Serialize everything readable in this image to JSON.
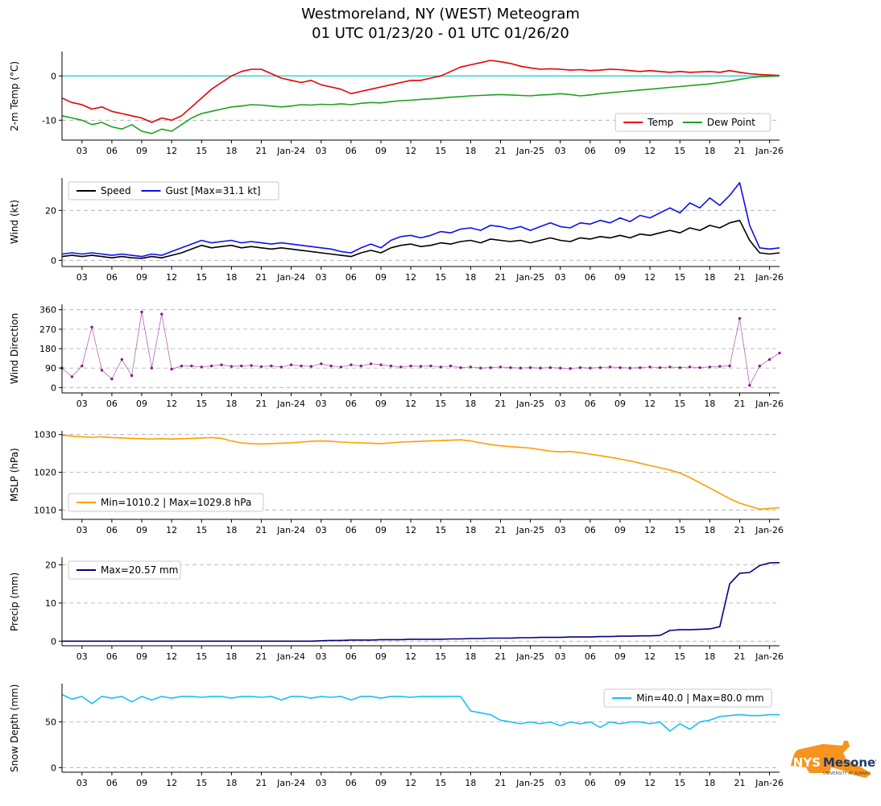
{
  "title": "Westmoreland, NY (WEST) Meteogram",
  "subtitle": "01 UTC 01/23/20 - 01 UTC 01/26/20",
  "logo": {
    "org": "NYS",
    "name": "Mesonet",
    "subtext": "UNIVERSITY AT ALBANY",
    "shape_color": "#f7941d",
    "text_color": "#1b3a6b"
  },
  "x_axis": {
    "hours_span": 72,
    "ticks": [
      {
        "h": 2,
        "label": "03"
      },
      {
        "h": 5,
        "label": "06"
      },
      {
        "h": 8,
        "label": "09"
      },
      {
        "h": 11,
        "label": "12"
      },
      {
        "h": 14,
        "label": "15"
      },
      {
        "h": 17,
        "label": "18"
      },
      {
        "h": 20,
        "label": "21"
      },
      {
        "h": 23,
        "label": "Jan-24"
      },
      {
        "h": 26,
        "label": "03"
      },
      {
        "h": 29,
        "label": "06"
      },
      {
        "h": 32,
        "label": "09"
      },
      {
        "h": 35,
        "label": "12"
      },
      {
        "h": 38,
        "label": "15"
      },
      {
        "h": 41,
        "label": "18"
      },
      {
        "h": 44,
        "label": "21"
      },
      {
        "h": 47,
        "label": "Jan-25"
      },
      {
        "h": 50,
        "label": "03"
      },
      {
        "h": 53,
        "label": "06"
      },
      {
        "h": 56,
        "label": "09"
      },
      {
        "h": 59,
        "label": "12"
      },
      {
        "h": 62,
        "label": "15"
      },
      {
        "h": 65,
        "label": "18"
      },
      {
        "h": 68,
        "label": "21"
      },
      {
        "h": 71,
        "label": "Jan-26"
      }
    ]
  },
  "grid": {
    "on": true,
    "color": "#aaaaaa",
    "dash": "5 4"
  },
  "chart_data": [
    {
      "type": "line",
      "name": "temperature",
      "ylabel": "2-m Temp (°C)",
      "ylim": [
        -14.5,
        5.5
      ],
      "yticks": [
        0,
        -10
      ],
      "hline": {
        "y": 0,
        "color": "#2ad0d0"
      },
      "legend": {
        "pos": "se",
        "items": [
          {
            "label": "Temp",
            "color": "#e60000"
          },
          {
            "label": "Dew Point",
            "color": "#1fa01f"
          }
        ]
      },
      "series": [
        {
          "name": "temp",
          "color": "#e60000",
          "values": [
            -5.0,
            -6.0,
            -6.5,
            -7.5,
            -7.0,
            -8.0,
            -8.5,
            -9.0,
            -9.5,
            -10.5,
            -9.5,
            -10.0,
            -9.0,
            -7.0,
            -5.0,
            -3.0,
            -1.5,
            0.0,
            1.0,
            1.5,
            1.5,
            0.5,
            -0.5,
            -1.0,
            -1.5,
            -1.0,
            -2.0,
            -2.5,
            -3.0,
            -4.0,
            -3.5,
            -3.0,
            -2.5,
            -2.0,
            -1.5,
            -1.0,
            -1.0,
            -0.5,
            0.0,
            1.0,
            2.0,
            2.5,
            3.0,
            3.5,
            3.2,
            2.8,
            2.2,
            1.8,
            1.5,
            1.6,
            1.5,
            1.3,
            1.4,
            1.2,
            1.3,
            1.5,
            1.4,
            1.2,
            1.0,
            1.2,
            1.0,
            0.8,
            1.0,
            0.8,
            0.9,
            1.0,
            0.8,
            1.2,
            0.8,
            0.5,
            0.3,
            0.2,
            0.1
          ]
        },
        {
          "name": "dew-point",
          "color": "#1fa01f",
          "values": [
            -9.0,
            -9.5,
            -10.0,
            -11.0,
            -10.5,
            -11.5,
            -12.0,
            -11.0,
            -12.5,
            -13.0,
            -12.0,
            -12.5,
            -11.0,
            -9.5,
            -8.5,
            -8.0,
            -7.5,
            -7.0,
            -6.8,
            -6.5,
            -6.6,
            -6.8,
            -7.0,
            -6.8,
            -6.5,
            -6.6,
            -6.4,
            -6.5,
            -6.3,
            -6.5,
            -6.2,
            -6.0,
            -6.1,
            -5.8,
            -5.6,
            -5.5,
            -5.3,
            -5.2,
            -5.0,
            -4.8,
            -4.7,
            -4.5,
            -4.4,
            -4.3,
            -4.2,
            -4.3,
            -4.4,
            -4.5,
            -4.3,
            -4.2,
            -4.0,
            -4.2,
            -4.5,
            -4.3,
            -4.0,
            -3.8,
            -3.6,
            -3.4,
            -3.2,
            -3.0,
            -2.8,
            -2.6,
            -2.4,
            -2.2,
            -2.0,
            -1.8,
            -1.5,
            -1.2,
            -0.8,
            -0.4,
            -0.2,
            -0.1,
            0.0
          ]
        }
      ]
    },
    {
      "type": "line",
      "name": "wind",
      "ylabel": "Wind (kt)",
      "ylim": [
        -2.5,
        33
      ],
      "yticks": [
        0,
        20
      ],
      "legend": {
        "pos": "nw",
        "items": [
          {
            "label": "Speed",
            "color": "#000000"
          },
          {
            "label": "Gust [Max=31.1 kt]",
            "color": "#0f0fe8"
          }
        ]
      },
      "series": [
        {
          "name": "speed",
          "color": "#000000",
          "values": [
            1.5,
            2.0,
            1.5,
            2.0,
            1.5,
            1.0,
            1.5,
            1.0,
            0.8,
            1.5,
            1.0,
            2.0,
            3.0,
            4.5,
            6.0,
            5.0,
            5.5,
            6.0,
            5.0,
            5.5,
            5.0,
            4.5,
            5.0,
            4.5,
            4.0,
            3.5,
            3.0,
            2.5,
            2.0,
            1.5,
            3.0,
            4.0,
            3.0,
            5.0,
            6.0,
            6.5,
            5.5,
            6.0,
            7.0,
            6.5,
            7.5,
            8.0,
            7.0,
            8.5,
            8.0,
            7.5,
            8.0,
            7.0,
            8.0,
            9.0,
            8.0,
            7.5,
            9.0,
            8.5,
            9.5,
            9.0,
            10.0,
            9.0,
            10.5,
            10.0,
            11.0,
            12.0,
            11.0,
            13.0,
            12.0,
            14.0,
            13.0,
            15.0,
            16.0,
            8.0,
            3.0,
            2.5,
            3.0
          ]
        },
        {
          "name": "gust",
          "color": "#0f0fe8",
          "values": [
            2.5,
            3.0,
            2.5,
            3.0,
            2.5,
            2.0,
            2.5,
            2.0,
            1.5,
            2.5,
            2.0,
            3.5,
            5.0,
            6.5,
            8.0,
            7.0,
            7.5,
            8.0,
            7.0,
            7.5,
            7.0,
            6.5,
            7.0,
            6.5,
            6.0,
            5.5,
            5.0,
            4.5,
            3.5,
            3.0,
            5.0,
            6.5,
            5.0,
            8.0,
            9.5,
            10.0,
            9.0,
            10.0,
            11.5,
            11.0,
            12.5,
            13.0,
            12.0,
            14.0,
            13.5,
            12.5,
            13.5,
            12.0,
            13.5,
            15.0,
            13.5,
            13.0,
            15.0,
            14.5,
            16.0,
            15.0,
            17.0,
            15.5,
            18.0,
            17.0,
            19.0,
            21.0,
            19.0,
            23.0,
            21.0,
            25.0,
            22.0,
            26.0,
            31.1,
            14.0,
            5.0,
            4.5,
            5.0
          ]
        }
      ]
    },
    {
      "type": "scatter",
      "name": "wind-direction",
      "ylabel": "Wind Direction",
      "ylim": [
        -25,
        385
      ],
      "yticks": [
        0,
        90,
        180,
        270,
        360
      ],
      "style": "dots",
      "series": [
        {
          "name": "direction",
          "color": "#8b1a89",
          "values": [
            90,
            50,
            100,
            280,
            80,
            40,
            130,
            55,
            350,
            90,
            340,
            85,
            100,
            100,
            95,
            100,
            105,
            98,
            100,
            102,
            97,
            100,
            95,
            105,
            100,
            98,
            110,
            100,
            95,
            105,
            100,
            110,
            105,
            100,
            95,
            100,
            98,
            100,
            95,
            100,
            92,
            95,
            90,
            92,
            95,
            92,
            90,
            92,
            90,
            92,
            90,
            88,
            92,
            90,
            92,
            95,
            92,
            90,
            92,
            95,
            92,
            95,
            92,
            95,
            92,
            95,
            98,
            100,
            320,
            10,
            100,
            130,
            160
          ]
        }
      ]
    },
    {
      "type": "line",
      "name": "mslp",
      "ylabel": "MSLP (hPa)",
      "ylim": [
        1007.5,
        1031
      ],
      "yticks": [
        1010,
        1020,
        1030
      ],
      "legend": {
        "pos": "sw",
        "items": [
          {
            "label": "Min=1010.2 | Max=1029.8 hPa",
            "color": "#ff9d00"
          }
        ]
      },
      "series": [
        {
          "name": "mslp",
          "color": "#ff9d00",
          "values": [
            1029.8,
            1029.6,
            1029.4,
            1029.3,
            1029.4,
            1029.2,
            1029.1,
            1029.0,
            1028.9,
            1028.8,
            1028.9,
            1028.8,
            1028.9,
            1029.0,
            1029.1,
            1029.2,
            1029.0,
            1028.3,
            1027.8,
            1027.6,
            1027.5,
            1027.6,
            1027.7,
            1027.8,
            1028.0,
            1028.2,
            1028.3,
            1028.2,
            1028.0,
            1027.9,
            1027.8,
            1027.7,
            1027.6,
            1027.8,
            1028.0,
            1028.1,
            1028.2,
            1028.3,
            1028.4,
            1028.5,
            1028.6,
            1028.3,
            1027.8,
            1027.4,
            1027.0,
            1026.8,
            1026.6,
            1026.4,
            1026.0,
            1025.6,
            1025.4,
            1025.5,
            1025.2,
            1024.8,
            1024.4,
            1024.0,
            1023.5,
            1023.0,
            1022.4,
            1021.8,
            1021.2,
            1020.6,
            1019.8,
            1018.6,
            1017.2,
            1015.8,
            1014.4,
            1013.0,
            1011.8,
            1011.0,
            1010.2,
            1010.4,
            1010.6
          ]
        }
      ]
    },
    {
      "type": "line",
      "name": "precip",
      "ylabel": "Precip (mm)",
      "ylim": [
        -1.2,
        22
      ],
      "yticks": [
        0,
        10,
        20
      ],
      "legend": {
        "pos": "nw",
        "items": [
          {
            "label": "Max=20.57 mm",
            "color": "#000080"
          }
        ]
      },
      "series": [
        {
          "name": "precip",
          "color": "#000080",
          "values": [
            0,
            0,
            0,
            0,
            0,
            0,
            0,
            0,
            0,
            0,
            0,
            0,
            0,
            0,
            0,
            0,
            0,
            0,
            0,
            0,
            0,
            0,
            0,
            0,
            0,
            0,
            0.1,
            0.2,
            0.2,
            0.3,
            0.3,
            0.3,
            0.4,
            0.4,
            0.4,
            0.5,
            0.5,
            0.5,
            0.5,
            0.6,
            0.6,
            0.7,
            0.7,
            0.8,
            0.8,
            0.8,
            0.9,
            0.9,
            1.0,
            1.0,
            1.0,
            1.1,
            1.1,
            1.1,
            1.2,
            1.2,
            1.3,
            1.3,
            1.4,
            1.4,
            1.5,
            2.8,
            3.0,
            3.0,
            3.1,
            3.2,
            3.8,
            15.0,
            17.8,
            18.0,
            19.8,
            20.5,
            20.57
          ]
        }
      ]
    },
    {
      "type": "line",
      "name": "snow-depth",
      "ylabel": "Snow Depth (mm)",
      "ylim": [
        -5,
        92
      ],
      "yticks": [
        0,
        50
      ],
      "legend": {
        "pos": "ne",
        "items": [
          {
            "label": "Min=40.0 | Max=80.0 mm",
            "color": "#18c0f0"
          }
        ]
      },
      "series": [
        {
          "name": "snow-depth",
          "color": "#18c0f0",
          "values": [
            80,
            75,
            78,
            70,
            78,
            76,
            78,
            72,
            78,
            74,
            78,
            76,
            78,
            78,
            77,
            78,
            78,
            76,
            78,
            78,
            77,
            78,
            74,
            78,
            78,
            76,
            78,
            77,
            78,
            74,
            78,
            78,
            76,
            78,
            78,
            77,
            78,
            78,
            78,
            78,
            78,
            62,
            60,
            58,
            52,
            50,
            48,
            50,
            48,
            50,
            46,
            50,
            48,
            50,
            44,
            50,
            48,
            50,
            50,
            48,
            50,
            40,
            48,
            42,
            50,
            52,
            56,
            57,
            58,
            57,
            57,
            58,
            58
          ]
        }
      ]
    }
  ]
}
